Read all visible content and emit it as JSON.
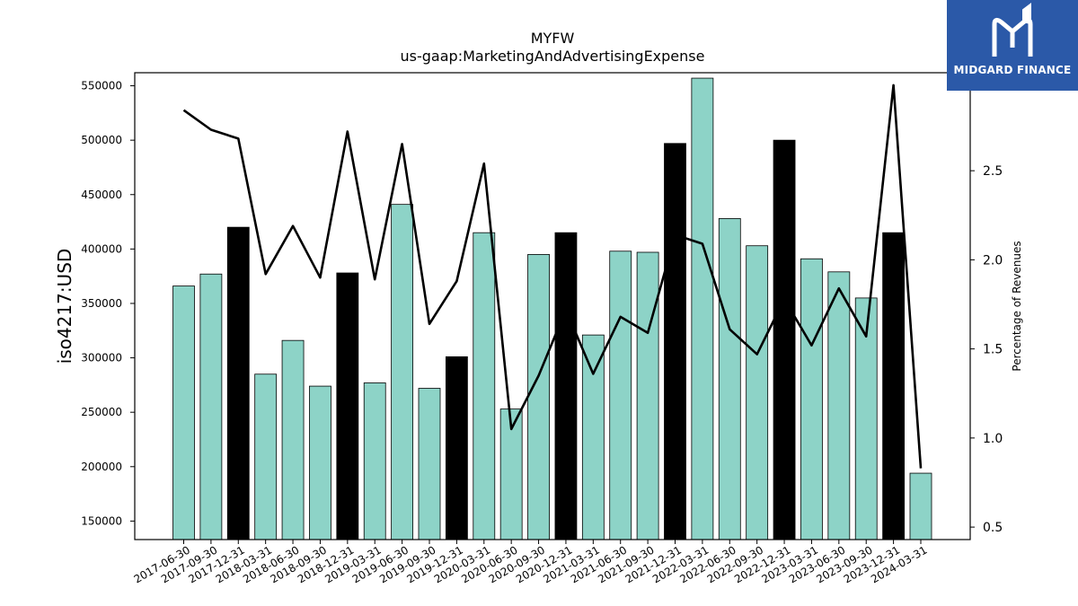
{
  "logo": {
    "brand": "MIDGARD FINANCE",
    "icon": "midgard-m-icon",
    "background": "#2b59a8"
  },
  "chart_data": {
    "type": "bar",
    "title": "MYFW",
    "subtitle": "us-gaap:MarketingAndAdvertisingExpense",
    "ylabel": "iso4217:USD",
    "y2label": "Percentage of Revenues",
    "ylim": [
      133000,
      562000
    ],
    "y2lim": [
      0.43,
      3.05
    ],
    "yticks": [
      150000,
      200000,
      250000,
      300000,
      350000,
      400000,
      450000,
      500000,
      550000
    ],
    "y2ticks": [
      0.5,
      1.0,
      1.5,
      2.0,
      2.5,
      3.0
    ],
    "y2ticklabels": [
      "0.5",
      "1.0",
      "1.5",
      "2.0",
      "2.5",
      "3.0"
    ],
    "categories": [
      "2017-06-30",
      "2017-09-30",
      "2017-12-31",
      "2018-03-31",
      "2018-06-30",
      "2018-09-30",
      "2018-12-31",
      "2019-03-31",
      "2019-06-30",
      "2019-09-30",
      "2019-12-31",
      "2020-03-31",
      "2020-06-30",
      "2020-09-30",
      "2020-12-31",
      "2021-03-31",
      "2021-06-30",
      "2021-09-30",
      "2021-12-31",
      "2022-03-31",
      "2022-06-30",
      "2022-09-30",
      "2022-12-31",
      "2023-03-31",
      "2023-06-30",
      "2023-09-30",
      "2023-12-31",
      "2024-03-31"
    ],
    "series": [
      {
        "type": "bar",
        "values": [
          366000,
          377000,
          420000,
          285000,
          316000,
          274000,
          378000,
          277000,
          441000,
          272000,
          301000,
          415000,
          253000,
          395000,
          415000,
          321000,
          398000,
          397000,
          497000,
          557000,
          428000,
          403000,
          500000,
          391000,
          379000,
          355000,
          415000,
          194000
        ],
        "colors": [
          "#8dd3c7",
          "#8dd3c7",
          "#000000",
          "#8dd3c7",
          "#8dd3c7",
          "#8dd3c7",
          "#000000",
          "#8dd3c7",
          "#8dd3c7",
          "#8dd3c7",
          "#000000",
          "#8dd3c7",
          "#8dd3c7",
          "#8dd3c7",
          "#000000",
          "#8dd3c7",
          "#8dd3c7",
          "#8dd3c7",
          "#000000",
          "#8dd3c7",
          "#8dd3c7",
          "#8dd3c7",
          "#000000",
          "#8dd3c7",
          "#8dd3c7",
          "#8dd3c7",
          "#000000",
          "#8dd3c7"
        ]
      },
      {
        "type": "line",
        "axis": "right",
        "color": "#000000",
        "values": [
          2.84,
          2.73,
          2.68,
          1.92,
          2.19,
          1.9,
          2.72,
          1.89,
          2.65,
          1.64,
          1.88,
          2.54,
          1.05,
          1.35,
          1.72,
          1.36,
          1.68,
          1.59,
          2.14,
          2.09,
          1.61,
          1.47,
          1.78,
          1.52,
          1.84,
          1.57,
          2.98,
          0.83
        ]
      }
    ],
    "grid": false,
    "legend": "none"
  }
}
